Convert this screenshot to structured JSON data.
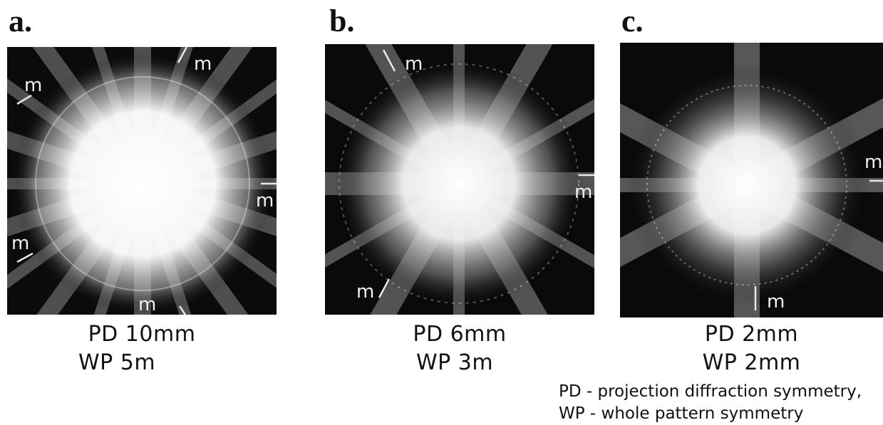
{
  "panels": [
    {
      "letter": "a.",
      "pd": "PD 10mm",
      "wp": "WP 5m",
      "mirror_label": "m",
      "mirror_count": 5
    },
    {
      "letter": "b.",
      "pd": "PD 6mm",
      "wp": "WP 3m",
      "mirror_label": "m",
      "mirror_count": 3
    },
    {
      "letter": "c.",
      "pd": "PD 2mm",
      "wp": "WP 2mm",
      "mirror_label": "m",
      "mirror_count": 2
    }
  ],
  "legend": {
    "pd": "PD - projection diffraction symmetry,",
    "wp": "WP - whole pattern symmetry"
  },
  "colors": {
    "background": "#ffffff",
    "pattern_bg": "#0a0a0a",
    "glow": "#ffffff"
  }
}
